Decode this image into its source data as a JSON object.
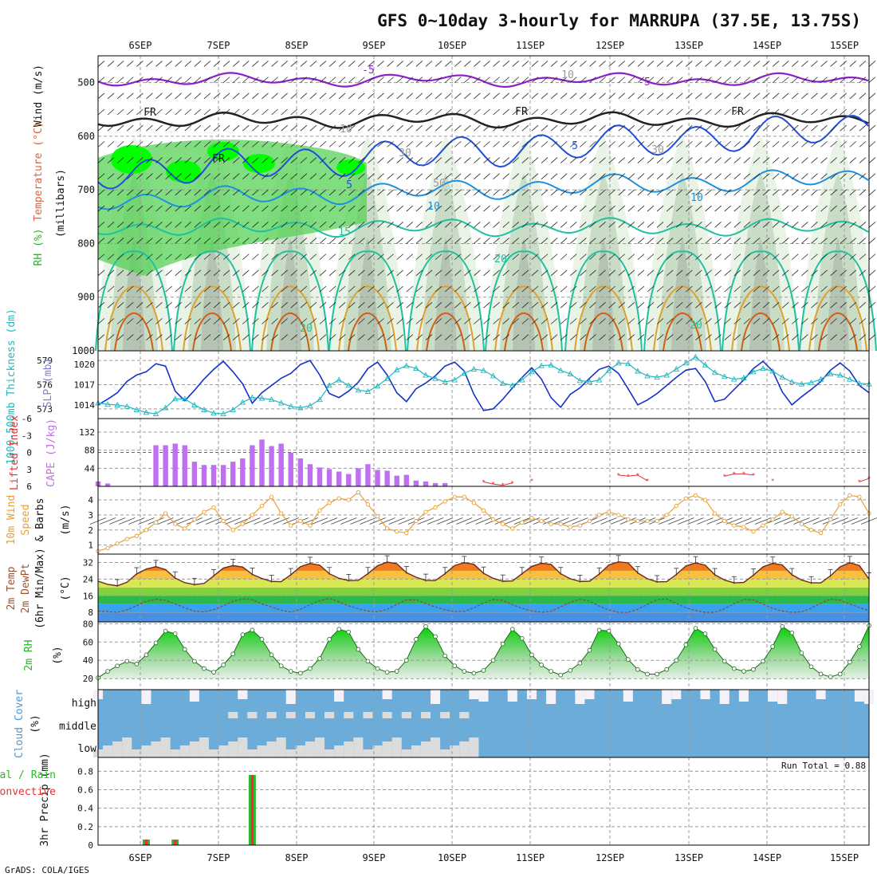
{
  "title": "GFS 0~10day 3-hourly for MARRUPA (37.5E, 13.75S)",
  "footer": "GrADS: COLA/IGES",
  "dates": [
    "6SEP",
    "7SEP",
    "8SEP",
    "9SEP",
    "10SEP",
    "11SEP",
    "12SEP",
    "13SEP",
    "14SEP",
    "15SEP"
  ],
  "colors": {
    "rh_light": "#eaf4e6",
    "rh_mid": "#c9dcc6",
    "rh_gray": "#b5c4b2",
    "rh_green": "#55d255",
    "rh_bright": "#00ff00",
    "temp_purple": "#8b1fc9",
    "temp_blue1": "#1f4fd9",
    "temp_blue2": "#1e90e0",
    "temp_teal": "#20c0a0",
    "temp_orange": "#e0a030",
    "temp_dorange": "#d06010",
    "temp_magenta": "#d000a0",
    "thickness": "#1432c8",
    "slp": "#20b8c0",
    "cape": "#bf70f0",
    "li": "#e03030",
    "wind10": "#e8a030",
    "rh2m": "#2ab52a",
    "cloud": "#6badd8",
    "cloud_gray": "#dcdcdc",
    "precip_total": "#2db82d",
    "precip_conv": "#e83030"
  },
  "panels": {
    "profile": {
      "ylabel_rh": "RH (%)",
      "ylabel_temp": "Temperature (°C)",
      "ylabel_wind": "Wind (m/s)",
      "ylabel_mb": "(millibars)",
      "levels": [
        "500",
        "600",
        "700",
        "800",
        "900",
        "1000"
      ],
      "contour_labels": [
        "-5",
        "-5",
        "10",
        "5",
        "10",
        "15",
        "20",
        "20",
        "30",
        "30",
        "FR",
        "FR",
        "FR",
        "FR",
        "10",
        "5",
        "50",
        "10",
        "20"
      ]
    },
    "thickness_slp": {
      "ylabel_thick": "1000-500mb Thickness (dm)",
      "ylabel_slp": "SLP (mb)",
      "thick_ticks": [
        "579",
        "576",
        "573"
      ],
      "slp_ticks": [
        "1020",
        "1017",
        "1014"
      ]
    },
    "cape_li": {
      "ylabel_li": "Lifted Index",
      "ylabel_cape": "CAPE (J/kg)",
      "li_ticks": [
        "-6",
        "-3",
        "0",
        "3",
        "6"
      ],
      "cape_ticks": [
        "132",
        "88",
        "44"
      ]
    },
    "wind10": {
      "ylabel_a": "10m Wind",
      "ylabel_b": "Speed",
      "ylabel_c": "& Barbs",
      "ylabel_unit": "(m/s)",
      "ticks": [
        "4",
        "3",
        "2",
        "1"
      ]
    },
    "temp2m": {
      "ylabel_a": "2m Temp",
      "ylabel_b": "2m DewPt",
      "ylabel_c": "(6hr Min/Max)",
      "ylabel_unit": "(°C)",
      "ticks": [
        "32",
        "24",
        "16",
        "8"
      ]
    },
    "rh2m": {
      "ylabel_a": "2m RH",
      "ylabel_unit": "(%)",
      "ticks": [
        "80",
        "60",
        "40",
        "20"
      ]
    },
    "cloud": {
      "ylabel": "Cloud Cover",
      "ylabel_unit": "(%)",
      "rows": [
        "high",
        "middle",
        "low"
      ]
    },
    "precip": {
      "ylabel_precip": "3hr Precip (mm)",
      "ylabel_total": "Total / Rain",
      "ylabel_conv": "Convective",
      "ticks": [
        "0.8",
        "0.6",
        "0.4",
        "0.2",
        "0"
      ],
      "run_total": "Run Total = 0.88"
    }
  },
  "chart_data": {
    "type": "meteogram",
    "time_step_hours": 3,
    "n_steps": 81,
    "x_dates": [
      "6SEP",
      "7SEP",
      "8SEP",
      "9SEP",
      "10SEP",
      "11SEP",
      "12SEP",
      "13SEP",
      "14SEP",
      "15SEP"
    ],
    "thickness_dm": [
      573.5,
      574.2,
      575.0,
      576.4,
      577.2,
      577.6,
      578.6,
      578.3,
      575.2,
      574.0,
      575.3,
      576.7,
      577.9,
      578.9,
      577.6,
      576.1,
      573.7,
      575.0,
      575.9,
      576.8,
      577.4,
      578.5,
      579.0,
      577.2,
      574.9,
      574.4,
      575.2,
      576.3,
      578.0,
      578.8,
      577.2,
      575.0,
      573.9,
      575.5,
      576.2,
      577.1,
      578.3,
      578.8,
      577.7,
      574.8,
      572.8,
      573.0,
      574.2,
      575.6,
      576.9,
      578.1,
      576.7,
      574.4,
      573.2,
      574.8,
      575.6,
      576.8,
      577.9,
      578.3,
      577.4,
      575.5,
      573.5,
      574.1,
      574.9,
      575.9,
      576.9,
      577.8,
      578.0,
      576.4,
      573.9,
      574.2,
      575.4,
      576.6,
      578.0,
      578.9,
      577.7,
      575.1,
      573.5,
      574.5,
      575.4,
      576.4,
      577.8,
      578.7,
      577.7,
      575.9,
      575.0
    ],
    "slp_mb": [
      1014.3,
      1014.1,
      1014.0,
      1013.8,
      1013.3,
      1012.9,
      1012.7,
      1013.6,
      1014.9,
      1014.9,
      1014.0,
      1013.3,
      1012.8,
      1012.7,
      1013.3,
      1014.4,
      1015.1,
      1015.0,
      1014.8,
      1014.3,
      1013.8,
      1013.6,
      1013.9,
      1014.8,
      1016.9,
      1017.7,
      1016.9,
      1016.2,
      1016.0,
      1016.8,
      1017.9,
      1019.2,
      1019.8,
      1019.4,
      1018.4,
      1017.9,
      1017.4,
      1017.7,
      1018.7,
      1019.3,
      1019.1,
      1018.3,
      1017.2,
      1016.9,
      1017.7,
      1018.9,
      1019.8,
      1019.9,
      1019.1,
      1018.6,
      1017.6,
      1017.4,
      1017.7,
      1019.1,
      1020.2,
      1020.1,
      1019.0,
      1018.3,
      1018.1,
      1018.4,
      1019.3,
      1020.2,
      1021.1,
      1019.9,
      1018.8,
      1018.2,
      1017.8,
      1018.0,
      1018.9,
      1019.4,
      1019.0,
      1018.1,
      1017.4,
      1017.1,
      1017.3,
      1017.8,
      1018.6,
      1018.4,
      1017.8,
      1017.2,
      1017.1
    ],
    "cape_jkg": [
      12,
      7,
      0,
      0,
      0,
      0,
      100,
      100,
      104,
      100,
      60,
      52,
      52,
      52,
      60,
      68,
      100,
      114,
      98,
      104,
      82,
      68,
      54,
      46,
      42,
      36,
      30,
      44,
      54,
      40,
      38,
      26,
      28,
      14,
      12,
      8,
      8,
      0,
      0,
      0,
      0,
      0,
      0,
      0,
      0,
      0,
      0,
      0,
      0,
      0,
      0,
      0,
      0,
      0,
      0,
      0,
      0,
      0,
      0,
      0,
      0,
      0,
      0,
      0,
      0,
      0,
      0,
      0,
      0,
      0,
      0,
      0,
      0,
      0,
      0,
      0,
      0,
      0,
      0,
      0,
      0
    ],
    "lifted_index": [
      null,
      null,
      null,
      null,
      null,
      null,
      null,
      null,
      null,
      null,
      null,
      null,
      null,
      null,
      null,
      null,
      null,
      null,
      null,
      null,
      null,
      null,
      null,
      null,
      null,
      null,
      null,
      null,
      null,
      null,
      null,
      null,
      null,
      null,
      null,
      null,
      null,
      null,
      null,
      null,
      5.2,
      5.6,
      5.8,
      5.4,
      null,
      5.0,
      null,
      null,
      null,
      null,
      null,
      null,
      null,
      null,
      4.0,
      4.2,
      4.0,
      5.0,
      null,
      null,
      null,
      null,
      null,
      null,
      null,
      4.2,
      3.8,
      3.8,
      4.0,
      null,
      5.0,
      null,
      null,
      null,
      null,
      null,
      null,
      null,
      null,
      5.2,
      4.6
    ],
    "wind10_ms": [
      0.6,
      0.8,
      1.1,
      1.4,
      1.6,
      2.0,
      2.5,
      3.1,
      2.4,
      2.1,
      2.7,
      3.2,
      3.5,
      2.6,
      2.0,
      2.4,
      3.0,
      3.6,
      4.2,
      3.1,
      2.3,
      2.6,
      2.3,
      3.3,
      3.8,
      4.1,
      4.0,
      4.5,
      3.7,
      2.9,
      2.1,
      1.9,
      1.8,
      2.6,
      3.2,
      3.5,
      3.9,
      4.2,
      4.2,
      3.8,
      3.3,
      2.7,
      2.4,
      2.1,
      2.5,
      2.8,
      2.6,
      2.4,
      2.4,
      2.2,
      2.3,
      2.6,
      3.0,
      3.2,
      3.0,
      2.7,
      2.6,
      2.6,
      2.6,
      3.0,
      3.6,
      4.1,
      4.3,
      4.0,
      3.1,
      2.6,
      2.3,
      2.2,
      1.9,
      2.3,
      2.7,
      3.2,
      2.9,
      2.4,
      2.0,
      1.8,
      2.7,
      3.7,
      4.3,
      4.2,
      3.1
    ],
    "temp2m_c": [
      23.0,
      21.5,
      20.8,
      22.5,
      26.5,
      28.8,
      30.0,
      28.6,
      24.5,
      22.3,
      21.4,
      21.9,
      25.6,
      29.3,
      30.5,
      29.8,
      26.3,
      24.3,
      22.9,
      22.8,
      26.1,
      30.0,
      31.5,
      30.7,
      26.6,
      24.4,
      23.3,
      23.4,
      26.6,
      30.4,
      32.2,
      31.4,
      27.1,
      24.9,
      23.4,
      23.3,
      26.6,
      30.5,
      31.9,
      31.1,
      26.8,
      24.4,
      23.0,
      23.1,
      26.6,
      30.1,
      31.6,
      31.1,
      26.6,
      24.2,
      22.9,
      23.0,
      26.4,
      30.8,
      32.3,
      31.8,
      27.0,
      24.2,
      22.7,
      22.8,
      26.2,
      30.3,
      31.8,
      30.7,
      26.1,
      23.6,
      22.2,
      22.4,
      25.9,
      29.9,
      31.6,
      30.8,
      26.1,
      23.6,
      22.2,
      22.2,
      25.6,
      29.9,
      31.9,
      30.5,
      24.0
    ],
    "dewpt2m_c": [
      8.6,
      8.4,
      8.1,
      9.2,
      11.3,
      13.3,
      14.4,
      13.8,
      12.1,
      10.3,
      8.6,
      8.3,
      9.4,
      11.2,
      13.3,
      14.6,
      14.2,
      12.1,
      10.7,
      9.1,
      8.2,
      9.5,
      11.8,
      13.6,
      14.8,
      13.1,
      11.2,
      9.8,
      8.7,
      8.3,
      9.5,
      11.9,
      14.0,
      14.1,
      12.3,
      10.6,
      9.4,
      8.4,
      8.5,
      10.2,
      12.5,
      14.3,
      13.8,
      11.8,
      10.0,
      8.7,
      8.1,
      8.5,
      10.7,
      12.9,
      14.4,
      13.4,
      11.1,
      9.2,
      8.1,
      8.0,
      9.6,
      11.9,
      14.2,
      14.5,
      12.4,
      10.3,
      8.9,
      8.1,
      8.1,
      9.8,
      12.2,
      14.3,
      14.1,
      12.0,
      10.0,
      8.7,
      8.1,
      8.3,
      10.1,
      12.4,
      14.4,
      13.9,
      12.0,
      10.4,
      8.9
    ],
    "rh2m_pct": [
      21,
      28,
      34,
      39,
      36,
      46,
      59,
      72,
      69,
      52,
      39,
      31,
      27,
      35,
      47,
      68,
      73,
      63,
      46,
      34,
      28,
      26,
      31,
      42,
      63,
      74,
      71,
      52,
      39,
      31,
      27,
      28,
      40,
      63,
      77,
      66,
      45,
      34,
      28,
      26,
      29,
      40,
      58,
      74,
      64,
      46,
      35,
      28,
      24,
      29,
      37,
      51,
      73,
      72,
      58,
      41,
      30,
      25,
      25,
      30,
      40,
      57,
      75,
      69,
      52,
      39,
      31,
      28,
      30,
      39,
      55,
      77,
      70,
      48,
      33,
      25,
      22,
      25,
      38,
      55,
      78
    ],
    "precip_total_mm": [
      0,
      0,
      0,
      0,
      0,
      0.06,
      0,
      0,
      0.06,
      0,
      0,
      0,
      0,
      0,
      0,
      0,
      0.76,
      0,
      0,
      0,
      0,
      0,
      0,
      0,
      0,
      0,
      0,
      0,
      0,
      0,
      0,
      0,
      0,
      0,
      0,
      0,
      0,
      0,
      0,
      0,
      0,
      0,
      0,
      0,
      0,
      0,
      0,
      0,
      0,
      0,
      0,
      0,
      0,
      0,
      0,
      0,
      0,
      0,
      0,
      0,
      0,
      0,
      0,
      0,
      0,
      0,
      0,
      0,
      0,
      0,
      0,
      0,
      0,
      0,
      0,
      0,
      0,
      0,
      0,
      0,
      0
    ],
    "precip_conv_mm": [
      0,
      0,
      0,
      0,
      0,
      0.06,
      0,
      0,
      0.06,
      0,
      0,
      0,
      0,
      0,
      0,
      0,
      0.76,
      0,
      0,
      0,
      0,
      0,
      0,
      0,
      0,
      0,
      0,
      0,
      0,
      0,
      0,
      0,
      0,
      0,
      0,
      0,
      0,
      0,
      0,
      0,
      0,
      0,
      0,
      0,
      0,
      0,
      0,
      0,
      0,
      0,
      0,
      0,
      0,
      0,
      0,
      0,
      0,
      0,
      0,
      0,
      0,
      0,
      0,
      0,
      0,
      0,
      0,
      0,
      0,
      0,
      0,
      0,
      0,
      0,
      0,
      0,
      0,
      0,
      0,
      0,
      0
    ],
    "run_total_mm": 0.88
  }
}
